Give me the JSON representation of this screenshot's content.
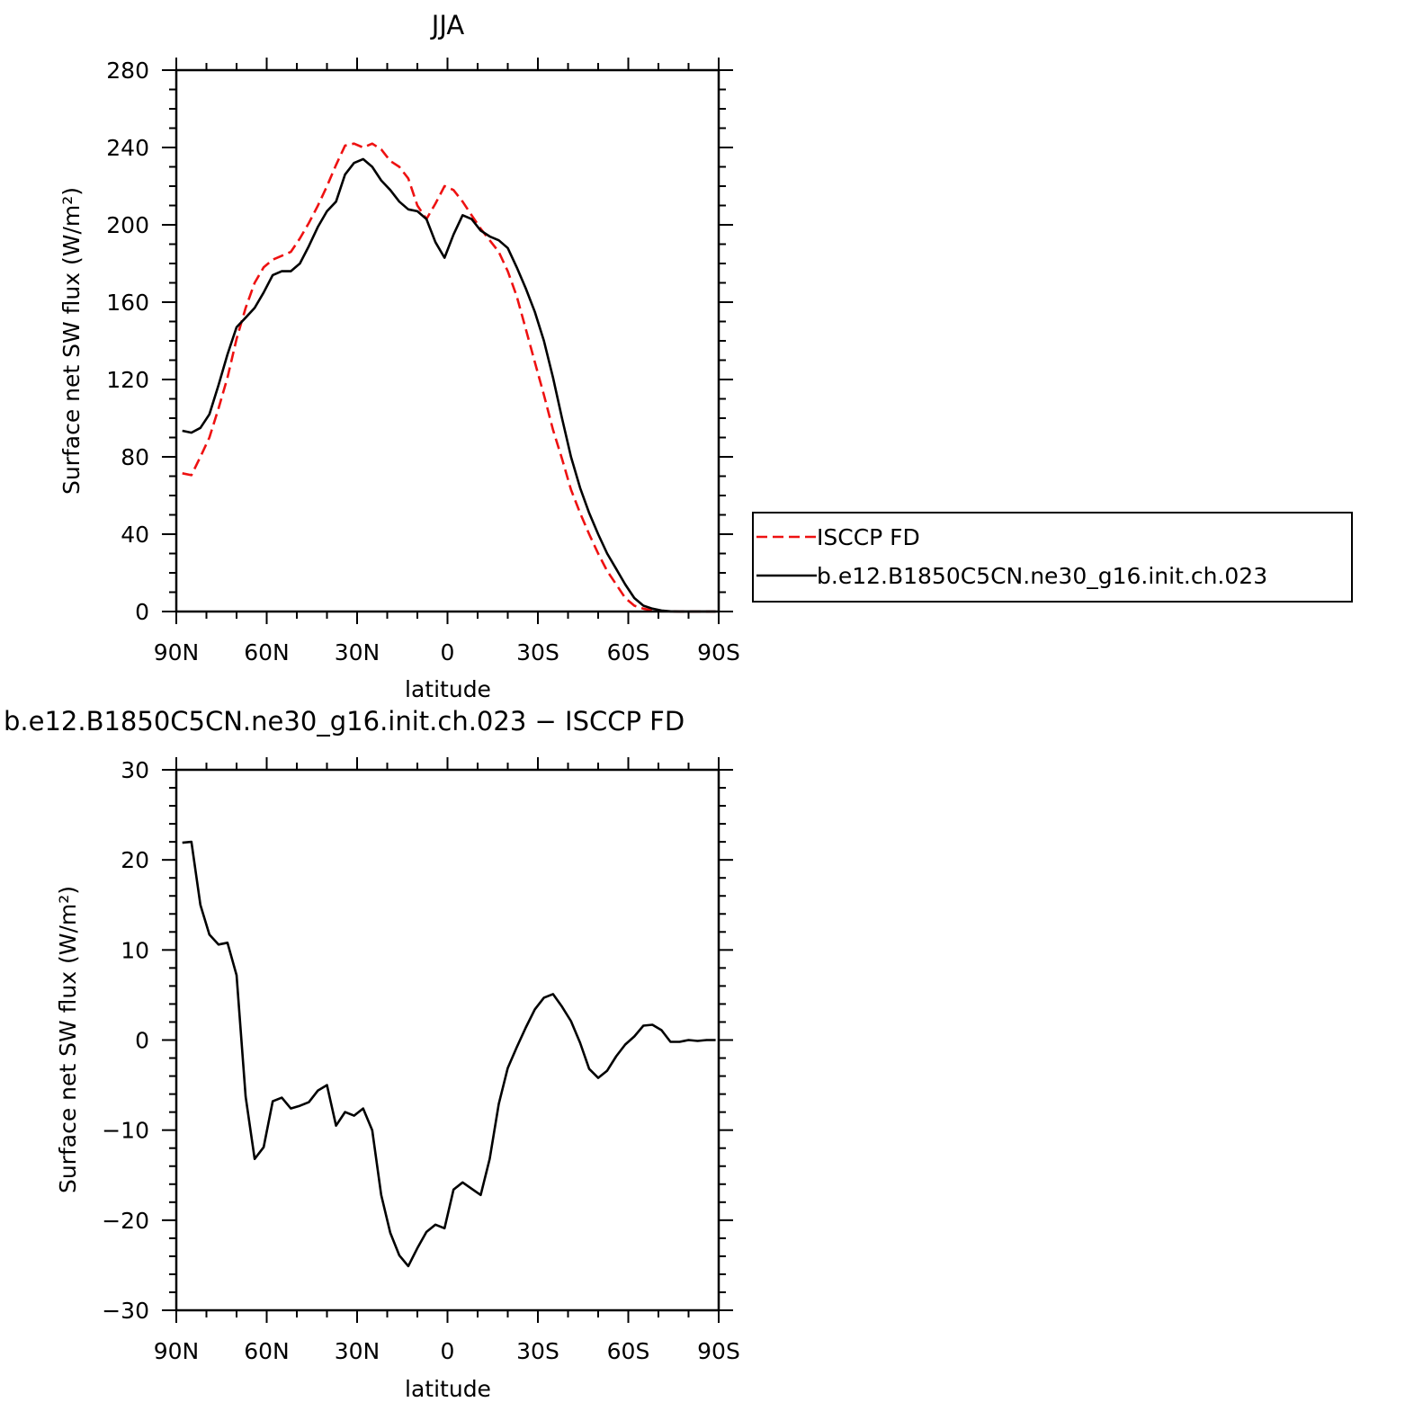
{
  "chart_data": [
    {
      "type": "line",
      "title": "JJA",
      "xlabel": "latitude",
      "ylabel": "Surface net SW flux (W/m²)",
      "xlim": [
        90,
        -90
      ],
      "ylim": [
        0,
        280
      ],
      "x_ticks": [
        {
          "v": 90,
          "label": "90N"
        },
        {
          "v": 60,
          "label": "60N"
        },
        {
          "v": 30,
          "label": "30N"
        },
        {
          "v": 0,
          "label": "0"
        },
        {
          "v": -30,
          "label": "30S"
        },
        {
          "v": -60,
          "label": "60S"
        },
        {
          "v": -90,
          "label": "90S"
        }
      ],
      "y_ticks": [
        0,
        40,
        80,
        120,
        160,
        200,
        240,
        280
      ],
      "legend": {
        "position": "right"
      },
      "series": [
        {
          "name": "ISCCP FD",
          "color": "#ee1111",
          "style": "dashed",
          "x": [
            88,
            85,
            82,
            79,
            76,
            73,
            70,
            67,
            64,
            61,
            58,
            55,
            52,
            49,
            46,
            43,
            40,
            37,
            34,
            31,
            28,
            25,
            22,
            19,
            16,
            13,
            10,
            7,
            4,
            1,
            -2,
            -5,
            -8,
            -11,
            -14,
            -17,
            -20,
            -23,
            -26,
            -29,
            -32,
            -35,
            -38,
            -41,
            -44,
            -47,
            -50,
            -53,
            -56,
            -59,
            -62,
            -65,
            -68,
            -71,
            -74,
            -77,
            -80,
            -83,
            -86,
            -89
          ],
          "values": [
            71.5,
            70.5,
            80,
            90,
            105,
            121,
            141,
            157,
            170,
            178,
            182,
            184,
            186,
            193,
            201,
            210,
            220,
            231,
            241,
            242,
            240,
            242,
            239,
            233,
            230,
            224,
            210,
            203,
            211,
            220,
            218,
            212,
            205,
            198,
            192,
            186,
            176,
            163,
            146,
            129,
            112,
            94,
            79,
            63,
            51,
            40,
            30,
            21,
            14,
            7,
            3,
            1.5,
            0.5,
            0.2,
            0.1,
            0,
            0,
            0,
            0,
            0
          ]
        },
        {
          "name": "b.e12.B1850C5CN.ne30_g16.init.ch.023",
          "color": "#000000",
          "style": "solid",
          "x": [
            88,
            85,
            82,
            79,
            76,
            73,
            70,
            67,
            64,
            61,
            58,
            55,
            52,
            49,
            46,
            43,
            40,
            37,
            34,
            31,
            28,
            25,
            22,
            19,
            16,
            13,
            10,
            7,
            4,
            1,
            -2,
            -5,
            -8,
            -11,
            -14,
            -17,
            -20,
            -23,
            -26,
            -29,
            -32,
            -35,
            -38,
            -41,
            -44,
            -47,
            -50,
            -53,
            -56,
            -59,
            -62,
            -65,
            -68,
            -71,
            -74,
            -77,
            -80,
            -83,
            -86,
            -89
          ],
          "values": [
            93.5,
            92.5,
            95,
            102,
            117,
            133,
            147,
            152,
            157,
            165,
            174,
            176,
            176,
            180,
            189,
            199,
            207,
            212,
            226,
            232,
            234,
            230,
            223,
            218,
            212,
            208,
            207,
            203,
            191,
            183,
            195,
            205,
            203,
            197,
            194,
            192,
            188,
            178,
            167,
            155,
            140,
            121,
            100,
            80,
            64,
            51,
            40,
            30,
            22,
            14,
            7,
            3,
            1.5,
            0.5,
            0.1,
            0,
            0,
            0,
            0,
            0
          ]
        }
      ]
    },
    {
      "type": "line",
      "title": "b.e12.B1850C5CN.ne30_g16.init.ch.023 − ISCCP FD",
      "xlabel": "latitude",
      "ylabel": "Surface net SW flux (W/m²)",
      "xlim": [
        90,
        -90
      ],
      "ylim": [
        -30,
        30
      ],
      "x_ticks": [
        {
          "v": 90,
          "label": "90N"
        },
        {
          "v": 60,
          "label": "60N"
        },
        {
          "v": 30,
          "label": "30N"
        },
        {
          "v": 0,
          "label": "0"
        },
        {
          "v": -30,
          "label": "30S"
        },
        {
          "v": -60,
          "label": "60S"
        },
        {
          "v": -90,
          "label": "90S"
        }
      ],
      "y_ticks": [
        -30,
        -20,
        -10,
        0,
        10,
        20,
        30
      ],
      "y_tick_labels": [
        "−30",
        "−20",
        "−10",
        "0",
        "10",
        "20",
        "30"
      ],
      "series": [
        {
          "color": "#000000",
          "style": "solid",
          "x": [
            88,
            85,
            82,
            79,
            76,
            73,
            70,
            67,
            64,
            61,
            58,
            55,
            52,
            49,
            46,
            43,
            40,
            37,
            34,
            31,
            28,
            25,
            22,
            19,
            16,
            13,
            10,
            7,
            4,
            1,
            -2,
            -5,
            -8,
            -11,
            -14,
            -17,
            -20,
            -23,
            -26,
            -29,
            -32,
            -35,
            -38,
            -41,
            -44,
            -47,
            -50,
            -53,
            -56,
            -59,
            -62,
            -65,
            -68,
            -71,
            -74,
            -77,
            -80,
            -83,
            -86,
            -89
          ],
          "values": [
            21.9,
            22,
            15,
            11.7,
            10.6,
            10.8,
            7.2,
            -6.3,
            -13.2,
            -11.9,
            -6.8,
            -6.4,
            -7.6,
            -7.3,
            -6.9,
            -5.6,
            -5,
            -9.5,
            -8,
            -8.4,
            -7.6,
            -10,
            -17.2,
            -21.4,
            -23.9,
            -25.1,
            -23.1,
            -21.3,
            -20.5,
            -20.9,
            -16.6,
            -15.8,
            -16.5,
            -17.2,
            -13.2,
            -7.1,
            -3.1,
            -0.8,
            1.4,
            3.4,
            4.7,
            5.1,
            3.7,
            2.1,
            -0.3,
            -3.2,
            -4.2,
            -3.4,
            -1.8,
            -0.5,
            0.4,
            1.6,
            1.7,
            1.1,
            -0.2,
            -0.2,
            0,
            -0.1,
            0,
            0
          ]
        }
      ]
    }
  ]
}
